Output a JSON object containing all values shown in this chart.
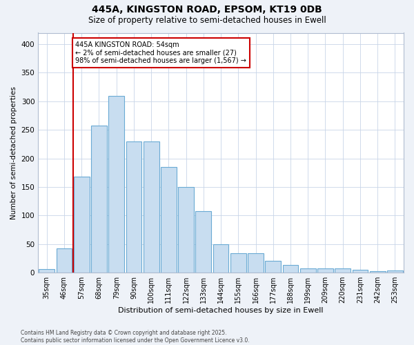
{
  "title_line1": "445A, KINGSTON ROAD, EPSOM, KT19 0DB",
  "title_line2": "Size of property relative to semi-detached houses in Ewell",
  "xlabel": "Distribution of semi-detached houses by size in Ewell",
  "ylabel": "Number of semi-detached properties",
  "categories": [
    "35sqm",
    "46sqm",
    "57sqm",
    "68sqm",
    "79sqm",
    "90sqm",
    "100sqm",
    "111sqm",
    "122sqm",
    "133sqm",
    "144sqm",
    "155sqm",
    "166sqm",
    "177sqm",
    "188sqm",
    "199sqm",
    "209sqm",
    "220sqm",
    "231sqm",
    "242sqm",
    "253sqm"
  ],
  "values": [
    6,
    43,
    168,
    258,
    310,
    230,
    230,
    185,
    150,
    108,
    50,
    34,
    34,
    21,
    13,
    8,
    8,
    7,
    5,
    3,
    4
  ],
  "bar_color": "#c8ddf0",
  "bar_edge_color": "#6aaad4",
  "marker_color": "#cc0000",
  "annotation_text": "445A KINGSTON ROAD: 54sqm\n← 2% of semi-detached houses are smaller (27)\n98% of semi-detached houses are larger (1,567) →",
  "annotation_box_color": "#ffffff",
  "annotation_box_edge": "#cc0000",
  "ylim": [
    0,
    420
  ],
  "yticks": [
    0,
    50,
    100,
    150,
    200,
    250,
    300,
    350,
    400
  ],
  "footer_line1": "Contains HM Land Registry data © Crown copyright and database right 2025.",
  "footer_line2": "Contains public sector information licensed under the Open Government Licence v3.0.",
  "background_color": "#eef2f8",
  "plot_bg_color": "#ffffff",
  "grid_color": "#c8d4e8"
}
